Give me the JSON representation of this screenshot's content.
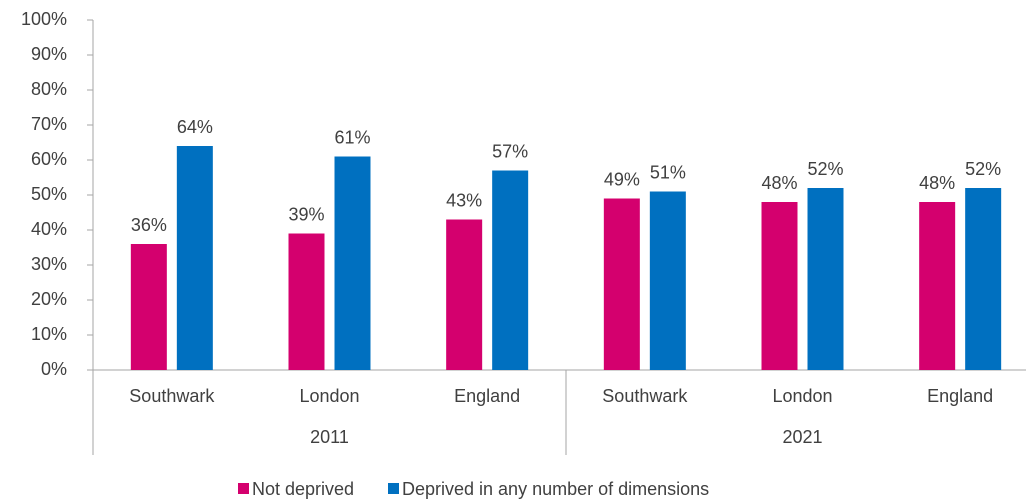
{
  "chart_data": {
    "type": "bar",
    "categories": [
      "Southwark",
      "London",
      "England",
      "Southwark",
      "London",
      "England"
    ],
    "groups": [
      {
        "label": "2011",
        "count": 3
      },
      {
        "label": "2021",
        "count": 3
      }
    ],
    "series": [
      {
        "name": "Not deprived",
        "color": "#d4006e",
        "values": [
          36,
          39,
          43,
          49,
          48,
          48
        ],
        "value_labels": [
          "36%",
          "39%",
          "43%",
          "49%",
          "48%",
          "48%"
        ]
      },
      {
        "name": "Deprived in any number of dimensions",
        "color": "#0070c0",
        "values": [
          64,
          61,
          57,
          51,
          52,
          52
        ],
        "value_labels": [
          "64%",
          "61%",
          "57%",
          "51%",
          "52%",
          "52%"
        ]
      }
    ],
    "ylim": [
      0,
      100
    ],
    "yticks": [
      {
        "value": 0,
        "label": "0%"
      },
      {
        "value": 10,
        "label": "10%"
      },
      {
        "value": 20,
        "label": "20%"
      },
      {
        "value": 30,
        "label": "30%"
      },
      {
        "value": 40,
        "label": "40%"
      },
      {
        "value": 50,
        "label": "50%"
      },
      {
        "value": 60,
        "label": "60%"
      },
      {
        "value": 70,
        "label": "70%"
      },
      {
        "value": 80,
        "label": "80%"
      },
      {
        "value": 90,
        "label": "90%"
      },
      {
        "value": 100,
        "label": "100%"
      }
    ],
    "grid": false,
    "legend": "bottom"
  }
}
